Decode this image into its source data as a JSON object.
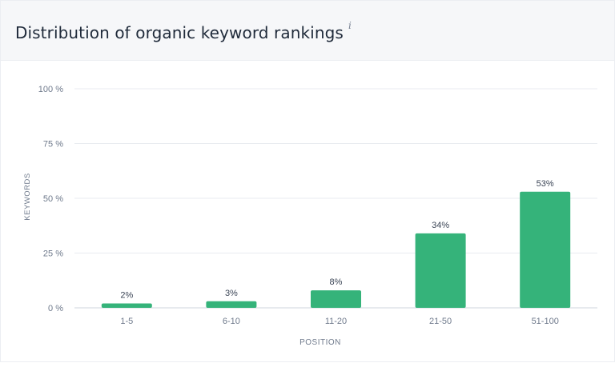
{
  "header": {
    "title": "Distribution of organic keyword rankings",
    "info_icon": "i"
  },
  "colors": {
    "bar": "#35b37a",
    "grid": "#e8ebf0",
    "axis_text": "#6f7a8c",
    "label_text": "#3b4556"
  },
  "chart_data": {
    "type": "bar",
    "categories": [
      "1-5",
      "6-10",
      "11-20",
      "21-50",
      "51-100"
    ],
    "values": [
      2,
      3,
      8,
      34,
      53
    ],
    "data_labels": [
      "2%",
      "3%",
      "8%",
      "34%",
      "53%"
    ],
    "title": "Distribution of organic keyword rankings",
    "xlabel": "POSITION",
    "ylabel": "KEYWORDS",
    "ylim": [
      0,
      100
    ],
    "yticks": [
      0,
      25,
      50,
      75,
      100
    ],
    "ytick_labels": [
      "0 %",
      "25 %",
      "50 %",
      "75 %",
      "100 %"
    ],
    "grid": true
  }
}
